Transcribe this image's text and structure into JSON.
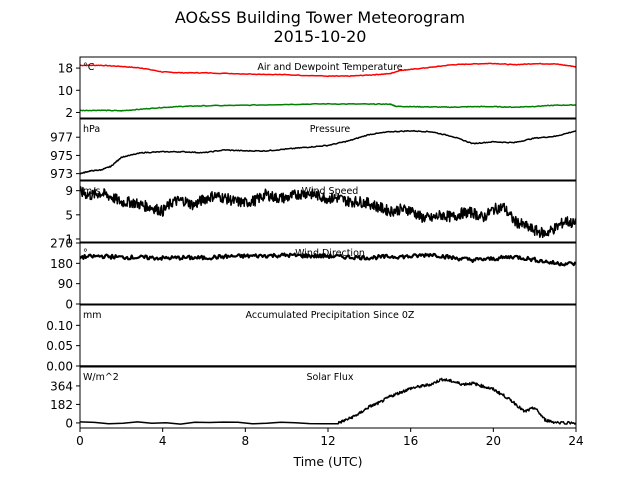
{
  "title_line1": "AO&SS Building Tower Meteorogram",
  "title_line2": "2015-10-20",
  "chart_data": {
    "type": "line",
    "title": "AO&SS Building Tower Meteorogram 2015-10-20",
    "xlabel": "Time (UTC)",
    "xlim": [
      0,
      24
    ],
    "xticks": [
      0,
      4,
      8,
      12,
      16,
      20,
      24
    ],
    "panels": [
      {
        "id": "temperature",
        "label": "Air and Dewpoint Temperature",
        "units": "°C",
        "ylim": [
          0,
          22
        ],
        "yticks": [
          2,
          10,
          18
        ],
        "series": [
          {
            "color": "#ff0000",
            "x": [
              0,
              1,
              2,
              3,
              4,
              5,
              6,
              8,
              10,
              12,
              13,
              14,
              15,
              15.5,
              16,
              17,
              18,
              19,
              20,
              21,
              22,
              23,
              24
            ],
            "values": [
              19,
              19,
              18.6,
              18,
              16.6,
              16.3,
              16.3,
              15.9,
              15.6,
              15.1,
              15.1,
              15.5,
              16,
              17.2,
              17.5,
              18.3,
              19.2,
              19.5,
              19.7,
              19.2,
              19.6,
              19.5,
              18.5
            ]
          },
          {
            "color": "#008000",
            "x": [
              0,
              1,
              2,
              3,
              4,
              5,
              6,
              8,
              10,
              12,
              14,
              15,
              15.3,
              16,
              17,
              18,
              19,
              20,
              21,
              22,
              23,
              24
            ],
            "values": [
              2.7,
              2.8,
              2.6,
              3.2,
              3.8,
              4.2,
              4.4,
              4.6,
              4.9,
              5.1,
              5,
              5,
              4.2,
              4.1,
              4,
              3.9,
              4.1,
              4.1,
              3.9,
              4.2,
              4.6,
              4.7
            ]
          }
        ]
      },
      {
        "id": "pressure",
        "label": "Pressure",
        "units": "hPa",
        "ylim": [
          972.3,
          979.0
        ],
        "yticks": [
          973,
          975,
          977
        ],
        "series": [
          {
            "color": "#000000",
            "x": [
              0,
              0.5,
              1,
              1.5,
              2,
              3,
              4,
              5,
              6,
              7,
              8,
              9,
              10,
              11,
              12,
              13,
              14,
              15,
              16,
              17,
              18,
              19,
              20,
              21,
              22,
              23,
              24
            ],
            "values": [
              973.0,
              973.3,
              973.4,
              973.8,
              974.8,
              975.3,
              975.4,
              975.4,
              975.3,
              975.6,
              975.5,
              975.5,
              975.7,
              975.9,
              976.1,
              976.6,
              977.3,
              977.6,
              977.7,
              977.6,
              977.1,
              976.3,
              976.5,
              976.4,
              976.9,
              977.1,
              977.7
            ]
          }
        ]
      },
      {
        "id": "wind_speed",
        "label": "Wind Speed",
        "units": "m/s",
        "ylim": [
          0.5,
          10.6
        ],
        "yticks": [
          1,
          5,
          9
        ],
        "series": [
          {
            "color": "#000000",
            "x": [
              0,
              0.5,
              1,
              1.5,
              2,
              2.5,
              3,
              3.5,
              4,
              4.5,
              5,
              5.5,
              6,
              6.5,
              7,
              7.5,
              8,
              8.5,
              9,
              9.5,
              10,
              10.5,
              11,
              11.5,
              12,
              12.5,
              13,
              13.5,
              14,
              14.5,
              15,
              15.5,
              16,
              16.5,
              17,
              17.5,
              18,
              18.5,
              19,
              19.5,
              20,
              20.5,
              21,
              21.5,
              22,
              22.5,
              23,
              23.5,
              24
            ],
            "values": [
              8.8,
              8.2,
              8.6,
              8,
              7.1,
              7.1,
              6.6,
              6.2,
              5.6,
              7.2,
              7.4,
              6.6,
              7.6,
              8.2,
              7.8,
              7.2,
              7,
              7.4,
              8.4,
              7.8,
              7.8,
              8.4,
              8.6,
              8.2,
              7.7,
              7.8,
              7.2,
              7.2,
              6.9,
              6.2,
              5.6,
              5.9,
              5.8,
              4.6,
              4.4,
              5,
              4.6,
              5.3,
              5.4,
              4.5,
              5.9,
              6.3,
              4,
              3.2,
              2.4,
              1.9,
              2.8,
              4,
              3.4
            ]
          }
        ]
      },
      {
        "id": "wind_direction",
        "label": "Wind Direction",
        "units": "°",
        "ylim": [
          0,
          270
        ],
        "yticks": [
          0,
          90,
          180,
          270
        ],
        "series": [
          {
            "color": "#000000",
            "x": [
              0,
              1,
              2,
              3,
              4,
              5,
              6,
              7,
              8,
              9,
              10,
              11,
              12,
              13,
              14,
              15,
              16,
              17,
              18,
              19,
              20,
              21,
              22,
              23,
              24
            ],
            "values": [
              207,
              212,
              207,
              206,
              203,
              205,
              204,
              210,
              212,
              214,
              216,
              213,
              212,
              208,
              205,
              210,
              210,
              220,
              205,
              195,
              200,
              210,
              196,
              180,
              178
            ]
          }
        ]
      },
      {
        "id": "precipitation",
        "label": "Accumulated Precipitation Since 0Z",
        "units": "mm",
        "ylim": [
          0,
          0.15
        ],
        "yticks": [
          0.0,
          0.05,
          0.1
        ],
        "ytick_labels": [
          "0.00",
          "0.05",
          "0.10"
        ],
        "series": [
          {
            "color": "#000000",
            "x": [
              0,
              24
            ],
            "values": [
              0,
              0
            ]
          }
        ]
      },
      {
        "id": "solar_flux",
        "label": "Solar Flux",
        "units": "W/m^2",
        "ylim": [
          -50,
          550
        ],
        "yticks": [
          0,
          182,
          364
        ],
        "series": [
          {
            "color": "#000000",
            "x": [
              0,
              12.5,
              13,
              13.5,
              14,
              14.5,
              15,
              15.5,
              16,
              16.5,
              17,
              17.5,
              18,
              18.5,
              19,
              19.5,
              20,
              20.5,
              21,
              21.5,
              22,
              22.5,
              23,
              24
            ],
            "values": [
              0,
              0,
              40,
              90,
              160,
              200,
              260,
              300,
              340,
              360,
              380,
              430,
              410,
              380,
              390,
              360,
              330,
              270,
              200,
              110,
              150,
              30,
              5,
              0
            ]
          }
        ]
      }
    ]
  }
}
